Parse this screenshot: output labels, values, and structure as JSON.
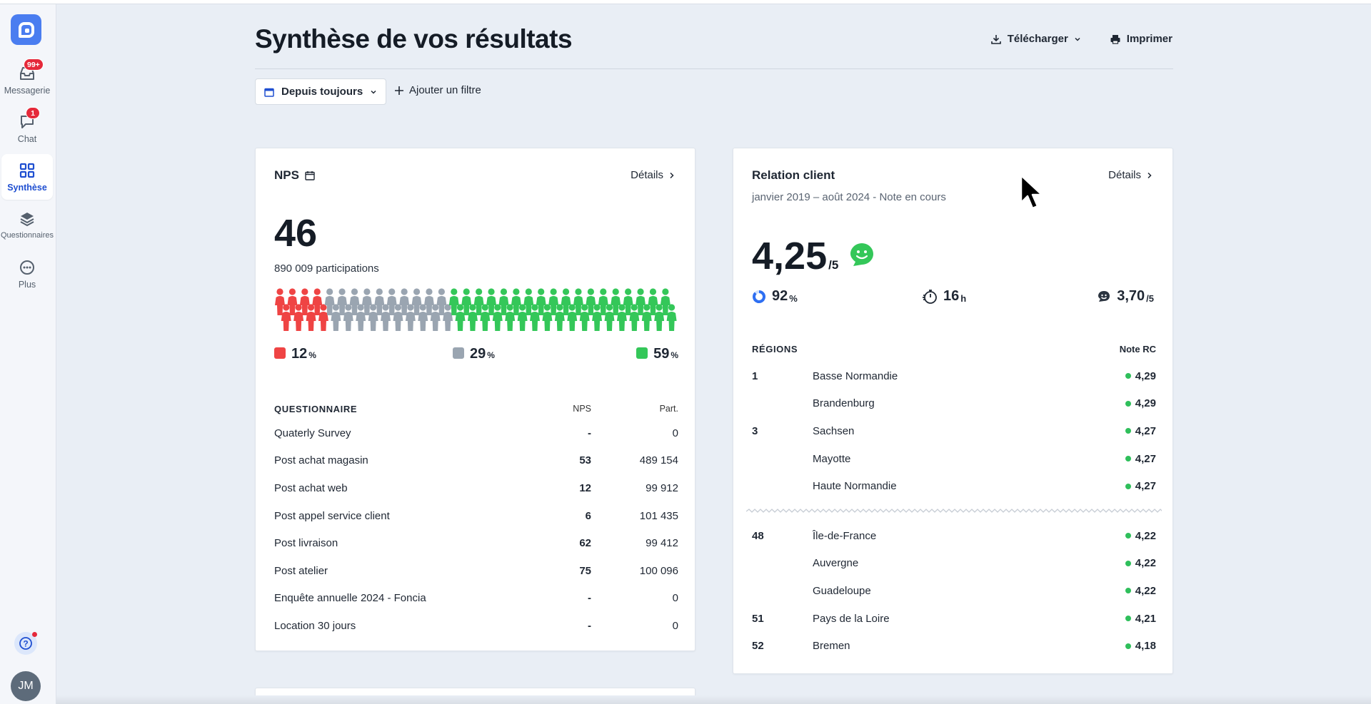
{
  "sidebar": {
    "items": [
      {
        "label": "Messagerie",
        "badge": "99+",
        "icon": "inbox-icon"
      },
      {
        "label": "Chat",
        "badge": "1",
        "icon": "chat-bubble-icon"
      },
      {
        "label": "Synthèse",
        "active": true,
        "icon": "grid-icon"
      },
      {
        "label": "Questionnaires",
        "icon": "layers-icon"
      },
      {
        "label": "Plus",
        "icon": "more-dots-icon"
      }
    ],
    "avatar": "JM"
  },
  "header": {
    "title": "Synthèse de vos résultats",
    "download_label": "Télécharger",
    "print_label": "Imprimer"
  },
  "filters": {
    "period_label": "Depuis toujours",
    "add_filter_label": "Ajouter un filtre"
  },
  "nps": {
    "title": "NPS",
    "details_label": "Détails",
    "score": "46",
    "participations": "890 009 participations",
    "detractors_pct": "12",
    "passives_pct": "29",
    "promoters_pct": "59",
    "pct_unit": "%",
    "people_counts": {
      "detractors": 4,
      "passives": 10,
      "promoters": 18
    },
    "colors": {
      "detractors": "#ef4444",
      "passives": "#9aa5b1",
      "promoters": "#34c759"
    },
    "table": {
      "headers": [
        "QUESTIONNAIRE",
        "NPS",
        "Part."
      ],
      "rows": [
        {
          "name": "Quaterly Survey",
          "nps": "-",
          "part": "0"
        },
        {
          "name": "Post achat magasin",
          "nps": "53",
          "part": "489 154"
        },
        {
          "name": "Post achat web",
          "nps": "12",
          "part": "99 912"
        },
        {
          "name": "Post appel service client",
          "nps": "6",
          "part": "101 435"
        },
        {
          "name": "Post livraison",
          "nps": "62",
          "part": "99 412"
        },
        {
          "name": "Post atelier",
          "nps": "75",
          "part": "100 096"
        },
        {
          "name": "Enquête annuelle 2024 - Foncia",
          "nps": "-",
          "part": "0"
        },
        {
          "name": "Location 30 jours",
          "nps": "-",
          "part": "0"
        }
      ]
    }
  },
  "relation": {
    "title": "Relation client",
    "details_label": "Détails",
    "subtitle": "janvier 2019 – août 2024 - Note en cours",
    "score": "4,25",
    "score_unit": "/5",
    "kpis": [
      {
        "icon": "progress-ring-icon",
        "value": "92",
        "unit": "%"
      },
      {
        "icon": "stopwatch-icon",
        "value": "16",
        "unit": "h"
      },
      {
        "icon": "smile-icon",
        "value": "3,70",
        "unit": "/5"
      }
    ],
    "regions_header": "RÉGIONS",
    "note_header": "Note RC",
    "top_regions": [
      {
        "rank": "1",
        "name": "Basse Normandie",
        "note": "4,29"
      },
      {
        "rank": "",
        "name": "Brandenburg",
        "note": "4,29"
      },
      {
        "rank": "3",
        "name": "Sachsen",
        "note": "4,27"
      },
      {
        "rank": "",
        "name": "Mayotte",
        "note": "4,27"
      },
      {
        "rank": "",
        "name": "Haute Normandie",
        "note": "4,27"
      }
    ],
    "bottom_regions": [
      {
        "rank": "48",
        "name": "Île-de-France",
        "note": "4,22"
      },
      {
        "rank": "",
        "name": "Auvergne",
        "note": "4,22"
      },
      {
        "rank": "",
        "name": "Guadeloupe",
        "note": "4,22"
      },
      {
        "rank": "51",
        "name": "Pays de la Loire",
        "note": "4,21"
      },
      {
        "rank": "52",
        "name": "Bremen",
        "note": "4,18"
      }
    ]
  }
}
